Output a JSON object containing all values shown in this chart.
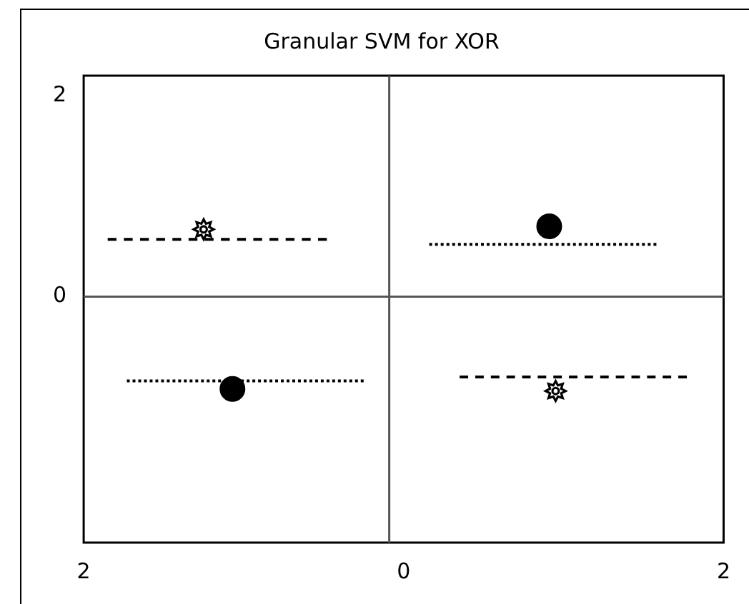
{
  "chart_data": {
    "type": "scatter",
    "title": "Granular SVM for XOR",
    "xlim": [
      -2,
      2
    ],
    "xticks": [
      {
        "value": -2,
        "label": "2"
      },
      0,
      2
    ],
    "ylim": [
      -2.45,
      2.2
    ],
    "yticks": [
      0,
      2
    ],
    "series": [
      {
        "color": "#000000",
        "marker": "circle",
        "x": [
          0.91,
          -1.07
        ],
        "values": [
          0.7,
          -0.92
        ]
      },
      {
        "color": "#000000",
        "marker": "star",
        "x": [
          -1.25,
          0.95
        ],
        "values": [
          0.67,
          -0.94
        ]
      },
      {
        "type": "line",
        "color": "#000000",
        "line_style": "dashed",
        "marker": "none",
        "x": [
          -1.85,
          -0.48
        ],
        "values": [
          0.57,
          0.57
        ]
      },
      {
        "type": "line",
        "color": "#000000",
        "line_style": "dotted",
        "marker": "none",
        "x": [
          0.16,
          1.58
        ],
        "values": [
          0.52,
          0.52
        ]
      },
      {
        "type": "line",
        "color": "#000000",
        "line_style": "dotted",
        "marker": "none",
        "x": [
          -1.73,
          -0.25
        ],
        "values": [
          -0.84,
          -0.84
        ]
      },
      {
        "type": "line",
        "color": "#000000",
        "line_style": "dashed",
        "marker": "none",
        "x": [
          0.35,
          1.77
        ],
        "values": [
          -0.8,
          -0.8
        ]
      }
    ],
    "ref_lines": [
      {
        "axis": "x",
        "value": -0.09,
        "color": "#555555"
      },
      {
        "axis": "y",
        "value": 0,
        "color": "#555555"
      }
    ]
  }
}
